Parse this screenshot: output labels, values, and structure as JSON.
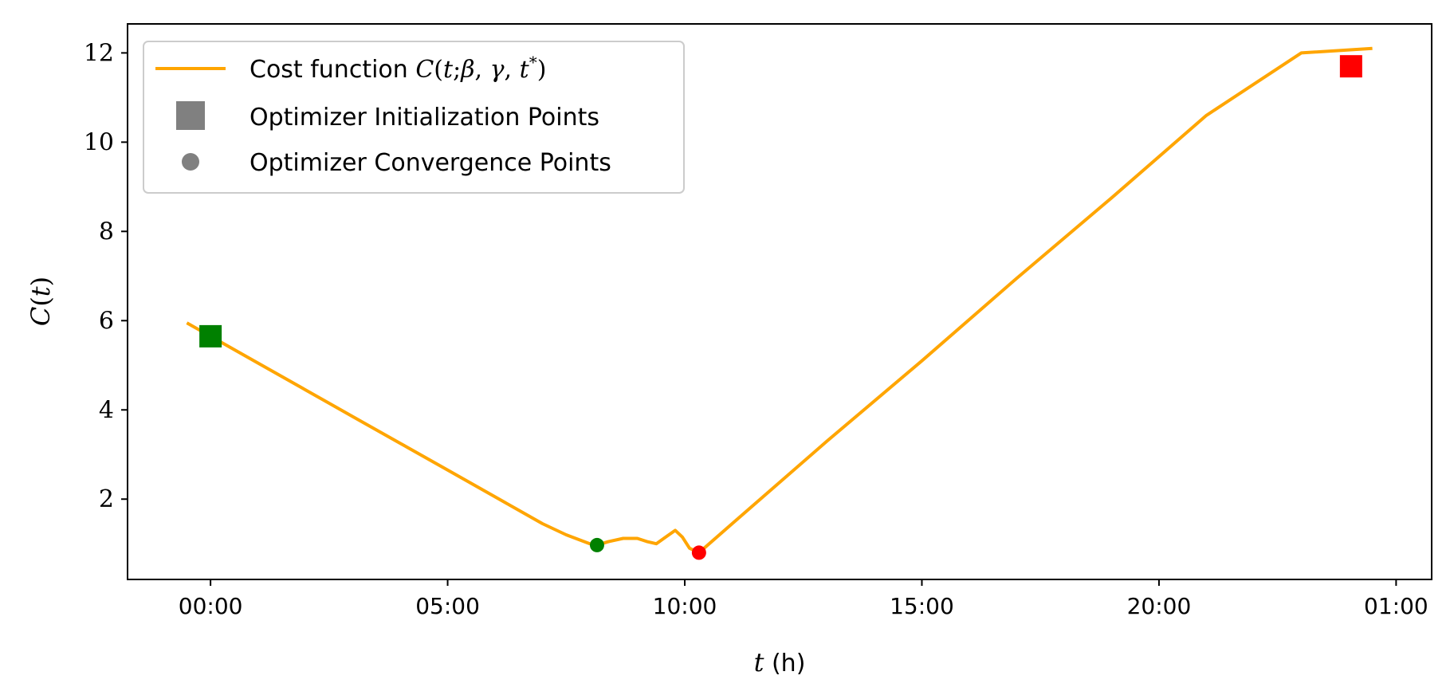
{
  "chart_data": {
    "type": "line",
    "xlabel": "t (h)",
    "ylabel": "C(t)",
    "x_unit": "hours",
    "xlim_hours": [
      -1.75,
      25.75
    ],
    "ylim": [
      0.2,
      12.65
    ],
    "x_ticks": [
      {
        "value": 0,
        "label": "00:00"
      },
      {
        "value": 5,
        "label": "05:00"
      },
      {
        "value": 10,
        "label": "10:00"
      },
      {
        "value": 15,
        "label": "15:00"
      },
      {
        "value": 20,
        "label": "20:00"
      },
      {
        "value": 25,
        "label": "01:00"
      }
    ],
    "y_ticks": [
      2,
      4,
      6,
      8,
      10,
      12
    ],
    "grid": false,
    "legend_position": "top-left",
    "legend": [
      {
        "label": "Cost function C(t;β,γ,t*)",
        "marker": "line",
        "color": "#FFA500"
      },
      {
        "label": "Optimizer Initialization Points",
        "marker": "square",
        "color": "#808080"
      },
      {
        "label": "Optimizer Convergence Points",
        "marker": "circle",
        "color": "#808080"
      }
    ],
    "series": [
      {
        "name": "Cost function C(t;β,γ,t*)",
        "color": "#FFA500",
        "x": [
          -0.5,
          0,
          1,
          2,
          3,
          4,
          5,
          6,
          7,
          7.5,
          8.0,
          8.15,
          8.4,
          8.7,
          9.0,
          9.2,
          9.4,
          9.6,
          9.8,
          9.95,
          10.1,
          10.3,
          11,
          13,
          15,
          17,
          19,
          21,
          23,
          24.5
        ],
        "y": [
          5.95,
          5.65,
          5.05,
          4.45,
          3.85,
          3.25,
          2.65,
          2.05,
          1.45,
          1.2,
          1.0,
          0.97,
          1.05,
          1.12,
          1.12,
          1.05,
          1.0,
          1.15,
          1.3,
          1.15,
          0.9,
          0.8,
          1.45,
          3.3,
          5.1,
          6.95,
          8.75,
          10.6,
          12.0,
          12.1
        ]
      }
    ],
    "initialization_points": [
      {
        "x": 0,
        "y": 5.65,
        "color": "#008000"
      },
      {
        "x": 24.05,
        "y": 11.7,
        "color": "#FF0000"
      }
    ],
    "convergence_points": [
      {
        "x": 8.15,
        "y": 0.97,
        "color": "#008000"
      },
      {
        "x": 10.3,
        "y": 0.8,
        "color": "#FF0000"
      }
    ]
  }
}
